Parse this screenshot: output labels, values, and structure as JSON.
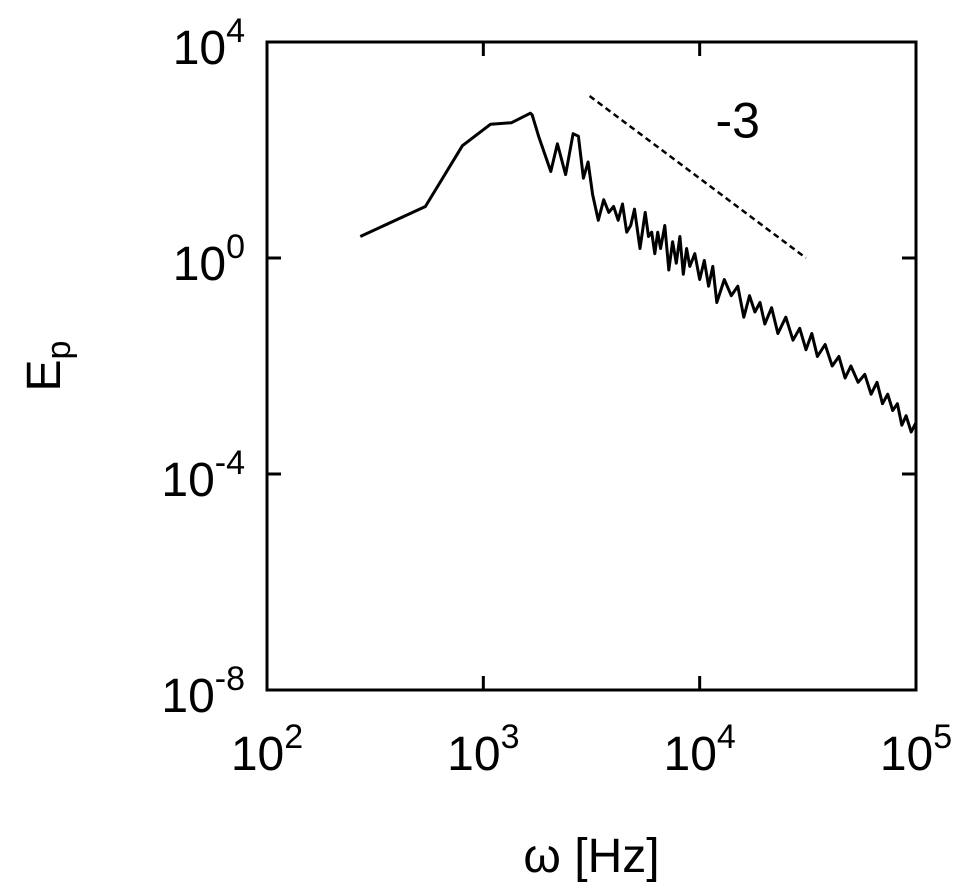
{
  "chart_data": {
    "type": "line",
    "xscale": "log",
    "yscale": "log",
    "xlim": [
      100,
      100000
    ],
    "ylim": [
      1e-08,
      10000
    ],
    "x_ticks": [
      {
        "base": "10",
        "exp": "2",
        "value": 100
      },
      {
        "base": "10",
        "exp": "3",
        "value": 1000
      },
      {
        "base": "10",
        "exp": "4",
        "value": 10000
      },
      {
        "base": "10",
        "exp": "5",
        "value": 100000
      }
    ],
    "y_ticks": [
      {
        "base": "10",
        "exp": "4",
        "value": 10000
      },
      {
        "base": "10",
        "exp": "0",
        "value": 1
      },
      {
        "base": "10",
        "exp": "-4",
        "value": 0.0001
      },
      {
        "base": "10",
        "exp": "-8",
        "value": 1e-08
      }
    ],
    "xlabel": "ω [Hz]",
    "ylabel": {
      "base": "E",
      "sub": "p"
    },
    "series": [
      {
        "style": "solid",
        "color": "#000000",
        "x": [
          270,
          540,
          800,
          1080,
          1350,
          1650,
          1680,
          1800,
          2050,
          2200,
          2400,
          2600,
          2750,
          2900,
          3050,
          3200,
          3400,
          3600,
          3800,
          4000,
          4200,
          4400,
          4600,
          4800,
          5000,
          5300,
          5600,
          5800,
          6000,
          6200,
          6400,
          6600,
          6900,
          7200,
          7500,
          7800,
          8100,
          8400,
          8700,
          9000,
          9500,
          10000,
          10500,
          11000,
          11500,
          12000,
          13000,
          14000,
          15000,
          16000,
          17000,
          18000,
          19000,
          20000,
          21500,
          23000,
          25000,
          27000,
          29000,
          31000,
          33000,
          35000,
          38000,
          41000,
          44000,
          47000,
          50000,
          54000,
          58000,
          62000,
          66000,
          70000,
          74000,
          78000,
          82000,
          86000,
          90000,
          95000,
          100000
        ],
        "y": [
          2.5,
          9,
          120,
          300,
          320,
          480,
          450,
          180,
          40,
          130,
          35,
          200,
          180,
          30,
          60,
          15,
          5,
          12,
          7,
          9,
          5,
          10,
          3,
          4,
          8,
          1.5,
          7,
          2.5,
          3,
          1.2,
          3,
          1.5,
          4,
          0.6,
          2,
          0.8,
          2.5,
          0.5,
          1.5,
          0.7,
          1.2,
          0.4,
          0.9,
          0.3,
          0.7,
          0.15,
          0.4,
          0.2,
          0.3,
          0.08,
          0.2,
          0.1,
          0.15,
          0.06,
          0.12,
          0.04,
          0.08,
          0.03,
          0.05,
          0.02,
          0.04,
          0.015,
          0.025,
          0.01,
          0.015,
          0.006,
          0.01,
          0.005,
          0.007,
          0.003,
          0.005,
          0.002,
          0.003,
          0.0015,
          0.002,
          0.0008,
          0.0012,
          0.0006,
          0.0009
        ]
      },
      {
        "style": "dashed",
        "color": "#000000",
        "x": [
          3100,
          31000
        ],
        "y": [
          1000,
          1
        ]
      }
    ],
    "annotation": {
      "text": "-3",
      "x": 15000,
      "y": 170
    },
    "grid": false,
    "legend": "none"
  }
}
